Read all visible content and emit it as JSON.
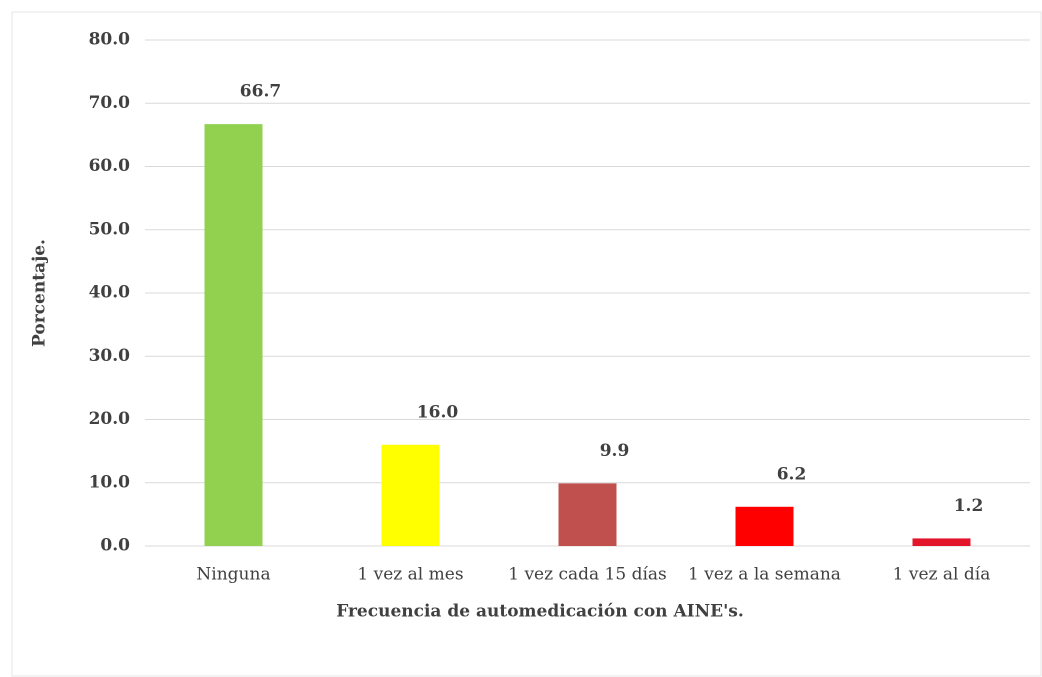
{
  "chart_data": {
    "type": "bar",
    "categories": [
      "Ninguna",
      "1 vez al mes",
      "1 vez cada 15 días",
      "1 vez a la semana",
      "1 vez al día"
    ],
    "values": [
      66.7,
      16.0,
      9.9,
      6.2,
      1.2
    ],
    "value_labels": [
      "66.7",
      "16.0",
      "9.9",
      "6.2",
      "1.2"
    ],
    "colors": [
      "#92d050",
      "#ffff00",
      "#c0504d",
      "#ff0000",
      "#e3152b"
    ],
    "x_label": "Frecuencia de automedicación con AINE's.",
    "y_label": "Porcentaje.",
    "ylim": [
      0,
      80
    ],
    "yticks": [
      {
        "value": 0,
        "label": "0.0"
      },
      {
        "value": 10,
        "label": "10.0"
      },
      {
        "value": 20,
        "label": "20.0"
      },
      {
        "value": 30,
        "label": "30.0"
      },
      {
        "value": 40,
        "label": "40.0"
      },
      {
        "value": 50,
        "label": "50.0"
      },
      {
        "value": 60,
        "label": "60.0"
      },
      {
        "value": 70,
        "label": "70.0"
      },
      {
        "value": 80,
        "label": "80.0"
      }
    ],
    "grid": true
  }
}
